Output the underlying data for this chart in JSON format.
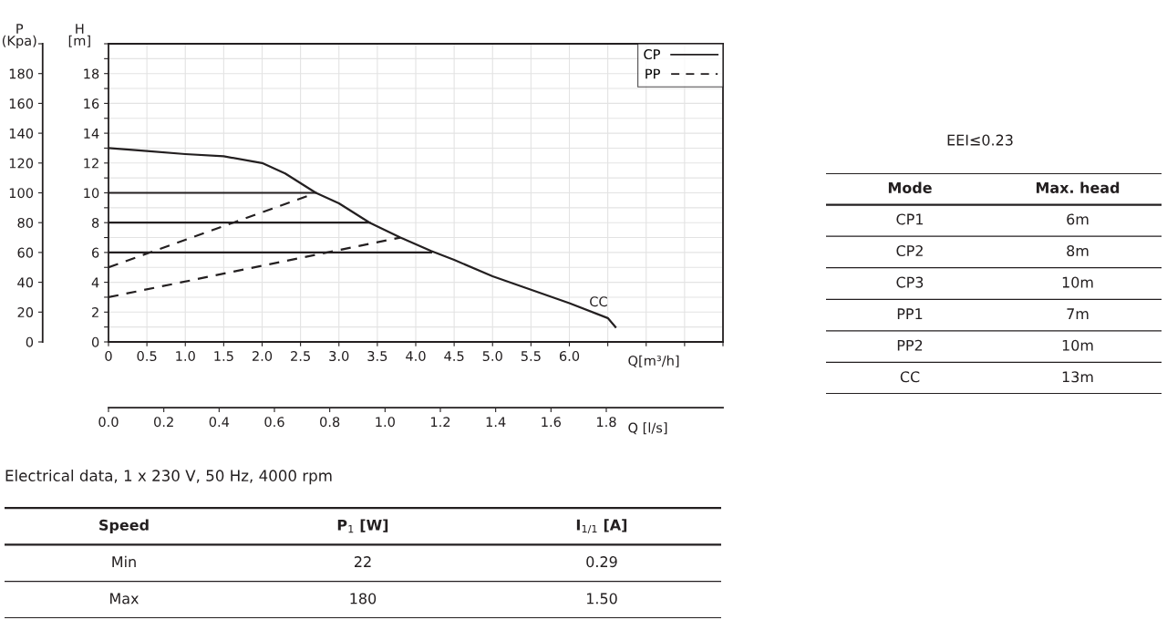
{
  "chart_data": [
    {
      "type": "line",
      "xlabel": "Q[m³/h]",
      "ylabel": "H\n[m]",
      "y2label": "P\n(Kpa)",
      "x2label": "Q [l/s]",
      "xlim": [
        0,
        8
      ],
      "xticks": [
        0,
        {
          "value": 0.5,
          "label": "0.5"
        },
        {
          "value": 1,
          "label": "1.0"
        },
        {
          "value": 1.5,
          "label": "1.5"
        },
        {
          "value": 2,
          "label": "2.0"
        },
        {
          "value": 2.5,
          "label": "2.5"
        },
        {
          "value": 3,
          "label": "3.0"
        },
        {
          "value": 3.5,
          "label": "3.5"
        },
        {
          "value": 4,
          "label": "4.0"
        },
        {
          "value": 4.5,
          "label": "4.5"
        },
        {
          "value": 5,
          "label": "5.0"
        },
        {
          "value": 5.5,
          "label": "5.5"
        },
        {
          "value": 6,
          "label": "6.0"
        },
        {
          "value": 6.5,
          "label": null
        },
        {
          "value": 7,
          "label": null
        },
        {
          "value": 7.5,
          "label": null
        },
        {
          "value": 8,
          "label": null
        }
      ],
      "ylim": [
        0,
        20
      ],
      "yticks": [
        0,
        {
          "value": 1,
          "label": null
        },
        2,
        {
          "value": 3,
          "label": null
        },
        4,
        {
          "value": 5,
          "label": null
        },
        6,
        {
          "value": 7,
          "label": null
        },
        8,
        {
          "value": 9,
          "label": null
        },
        10,
        {
          "value": 11,
          "label": null
        },
        12,
        {
          "value": 13,
          "label": null
        },
        14,
        {
          "value": 15,
          "label": null
        },
        16,
        {
          "value": 17,
          "label": null
        },
        18,
        {
          "value": 19,
          "label": null
        },
        {
          "value": 20,
          "label": null
        }
      ],
      "y2lim": [
        0,
        200
      ],
      "y2ticks": [
        0,
        20,
        40,
        60,
        80,
        100,
        120,
        140,
        160,
        180,
        {
          "value": 200,
          "label": null
        }
      ],
      "x2lim": [
        0,
        2.222
      ],
      "x2ticks": [
        {
          "value": 0,
          "label": "0.0"
        },
        0.2,
        0.4,
        0.6,
        0.8,
        {
          "value": 1,
          "label": "1.0"
        },
        1.2,
        1.4,
        1.6,
        1.8
      ],
      "grid": true,
      "legend": "top right",
      "series": [
        {
          "name": "CC",
          "color": "#231f20",
          "line_style": "solid",
          "x": [
            0,
            0.5,
            1,
            1.5,
            2,
            2.3,
            2.7,
            3,
            3.4,
            3.8,
            4.2,
            4.5,
            5,
            5.5,
            6,
            6.5,
            6.6
          ],
          "values": [
            13,
            12.8,
            12.6,
            12.45,
            12,
            11.3,
            10,
            9.3,
            8,
            7,
            6.1,
            5.5,
            4.4,
            3.5,
            2.6,
            1.6,
            1
          ]
        },
        {
          "name": "CP",
          "color": "#231f20",
          "line_style": "solid",
          "x": [
            0,
            2.7
          ],
          "values": [
            10,
            10
          ]
        },
        {
          "color": "#231f20",
          "line_style": "solid",
          "x": [
            0,
            3.4
          ],
          "values": [
            8,
            8
          ]
        },
        {
          "color": "#231f20",
          "line_style": "solid",
          "x": [
            0,
            4.2
          ],
          "values": [
            6,
            6
          ]
        },
        {
          "name": "PP",
          "color": "#231f20",
          "line_style": "dashed",
          "x": [
            0,
            2.65
          ],
          "values": [
            5,
            9.9
          ]
        },
        {
          "color": "#231f20",
          "line_style": "dashed",
          "x": [
            0,
            3.8
          ],
          "values": [
            3,
            7
          ]
        }
      ]
    },
    {
      "type": "other",
      "annotations": [
        "EEI≤0.23"
      ]
    },
    {
      "type": "other",
      "categories": [
        "Mode",
        "Max. head"
      ],
      "annotations": [
        "CP1",
        "6m",
        "CP2",
        "8m",
        "CP3",
        "10m",
        "PP1",
        "7m",
        "PP2",
        "10m",
        "CC",
        "13m"
      ]
    },
    {
      "type": "other",
      "title": "Electrical data, 1 x 230 V, 50 Hz, 4000 rpm",
      "categories": [
        "Speed",
        "P$_{1}$ [W]",
        "I$_{1/1}$ [A]"
      ],
      "annotations": [
        "Min",
        "22",
        "0.29",
        "Max",
        "180",
        "1.50"
      ]
    }
  ]
}
